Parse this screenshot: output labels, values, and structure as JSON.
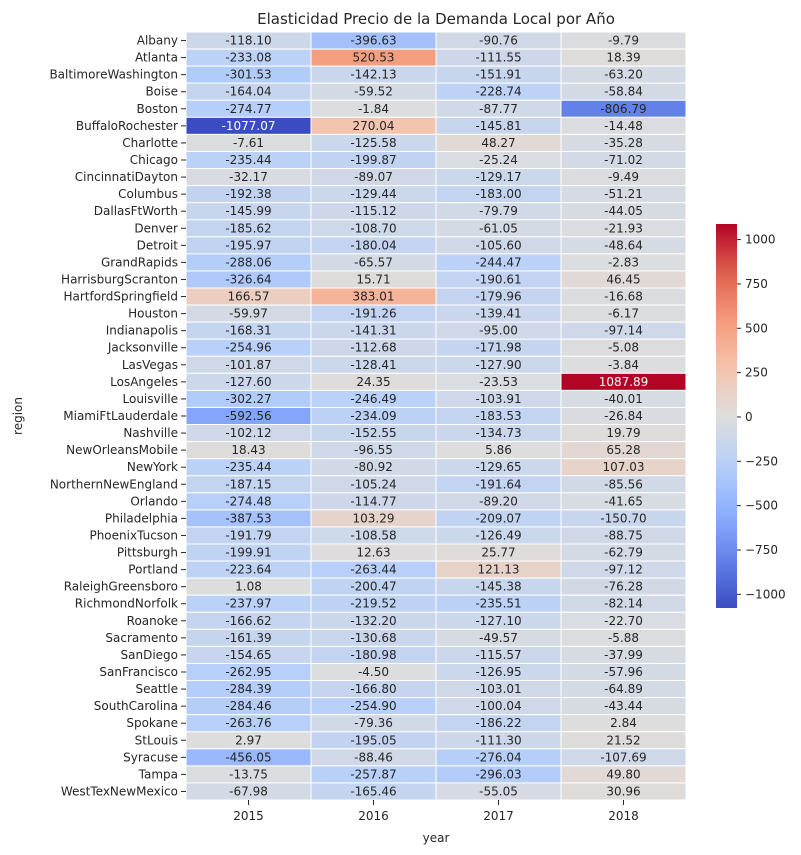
{
  "chart_data": {
    "type": "heatmap",
    "title": "Elasticidad Precio de la Demanda Local por Año",
    "xlabel": "year",
    "ylabel": "region",
    "x": [
      "2015",
      "2016",
      "2017",
      "2018"
    ],
    "y": [
      "Albany",
      "Atlanta",
      "BaltimoreWashington",
      "Boise",
      "Boston",
      "BuffaloRochester",
      "Charlotte",
      "Chicago",
      "CincinnatiDayton",
      "Columbus",
      "DallasFtWorth",
      "Denver",
      "Detroit",
      "GrandRapids",
      "HarrisburgScranton",
      "HartfordSpringfield",
      "Houston",
      "Indianapolis",
      "Jacksonville",
      "LasVegas",
      "LosAngeles",
      "Louisville",
      "MiamiFtLauderdale",
      "Nashville",
      "NewOrleansMobile",
      "NewYork",
      "NorthernNewEngland",
      "Orlando",
      "Philadelphia",
      "PhoenixTucson",
      "Pittsburgh",
      "Portland",
      "RaleighGreensboro",
      "RichmondNorfolk",
      "Roanoke",
      "Sacramento",
      "SanDiego",
      "SanFrancisco",
      "Seattle",
      "SouthCarolina",
      "Spokane",
      "StLouis",
      "Syracuse",
      "Tampa",
      "WestTexNewMexico"
    ],
    "values": [
      [
        "-118.10",
        "-396.63",
        "-90.76",
        "-9.79"
      ],
      [
        "-233.08",
        "520.53",
        "-111.55",
        "18.39"
      ],
      [
        "-301.53",
        "-142.13",
        "-151.91",
        "-63.20"
      ],
      [
        "-164.04",
        "-59.52",
        "-228.74",
        "-58.84"
      ],
      [
        "-274.77",
        "-1.84",
        "-87.77",
        "-806.79"
      ],
      [
        "-1077.07",
        "270.04",
        "-145.81",
        "-14.48"
      ],
      [
        "-7.61",
        "-125.58",
        "48.27",
        "-35.28"
      ],
      [
        "-235.44",
        "-199.87",
        "-25.24",
        "-71.02"
      ],
      [
        "-32.17",
        "-89.07",
        "-129.17",
        "-9.49"
      ],
      [
        "-192.38",
        "-129.44",
        "-183.00",
        "-51.21"
      ],
      [
        "-145.99",
        "-115.12",
        "-79.79",
        "-44.05"
      ],
      [
        "-185.62",
        "-108.70",
        "-61.05",
        "-21.93"
      ],
      [
        "-195.97",
        "-180.04",
        "-105.60",
        "-48.64"
      ],
      [
        "-288.06",
        "-65.57",
        "-244.47",
        "-2.83"
      ],
      [
        "-326.64",
        "15.71",
        "-190.61",
        "46.45"
      ],
      [
        "166.57",
        "383.01",
        "-179.96",
        "-16.68"
      ],
      [
        "-59.97",
        "-191.26",
        "-139.41",
        "-6.17"
      ],
      [
        "-168.31",
        "-141.31",
        "-95.00",
        "-97.14"
      ],
      [
        "-254.96",
        "-112.68",
        "-171.98",
        "-5.08"
      ],
      [
        "-101.87",
        "-128.41",
        "-127.90",
        "-3.84"
      ],
      [
        "-127.60",
        "24.35",
        "-23.53",
        "1087.89"
      ],
      [
        "-302.27",
        "-246.49",
        "-103.91",
        "-40.01"
      ],
      [
        "-592.56",
        "-234.09",
        "-183.53",
        "-26.84"
      ],
      [
        "-102.12",
        "-152.55",
        "-134.73",
        "19.79"
      ],
      [
        "18.43",
        "-96.55",
        "5.86",
        "65.28"
      ],
      [
        "-235.44",
        "-80.92",
        "-129.65",
        "107.03"
      ],
      [
        "-187.15",
        "-105.24",
        "-191.64",
        "-85.56"
      ],
      [
        "-274.48",
        "-114.77",
        "-89.20",
        "-41.65"
      ],
      [
        "-387.53",
        "103.29",
        "-209.07",
        "-150.70"
      ],
      [
        "-191.79",
        "-108.58",
        "-126.49",
        "-88.75"
      ],
      [
        "-199.91",
        "12.63",
        "25.77",
        "-62.79"
      ],
      [
        "-223.64",
        "-263.44",
        "121.13",
        "-97.12"
      ],
      [
        "1.08",
        "-200.47",
        "-145.38",
        "-76.28"
      ],
      [
        "-237.97",
        "-219.52",
        "-235.51",
        "-82.14"
      ],
      [
        "-166.62",
        "-132.20",
        "-127.10",
        "-22.70"
      ],
      [
        "-161.39",
        "-130.68",
        "-49.57",
        "-5.88"
      ],
      [
        "-154.65",
        "-180.98",
        "-115.57",
        "-37.99"
      ],
      [
        "-262.95",
        "-4.50",
        "-126.95",
        "-57.96"
      ],
      [
        "-284.39",
        "-166.80",
        "-103.01",
        "-64.89"
      ],
      [
        "-284.46",
        "-254.90",
        "-100.04",
        "-43.44"
      ],
      [
        "-263.76",
        "-79.36",
        "-186.22",
        "2.84"
      ],
      [
        "2.97",
        "-195.05",
        "-111.30",
        "21.52"
      ],
      [
        "-456.05",
        "-88.46",
        "-276.04",
        "-107.69"
      ],
      [
        "-13.75",
        "-257.87",
        "-296.03",
        "49.80"
      ],
      [
        "-67.98",
        "-165.46",
        "-55.05",
        "30.96"
      ]
    ],
    "colormap": "coolwarm",
    "colorbar": {
      "range": [
        -1077.07,
        1087.89
      ],
      "ticks": [
        "1000",
        "750",
        "500",
        "250",
        "0",
        "−250",
        "−500",
        "−750",
        "−1000"
      ],
      "tick_values": [
        1000,
        750,
        500,
        250,
        0,
        -250,
        -500,
        -750,
        -1000
      ]
    },
    "colors": {
      "low": "#3b4cc0",
      "mid": "#dddddd",
      "high": "#b40426"
    }
  }
}
